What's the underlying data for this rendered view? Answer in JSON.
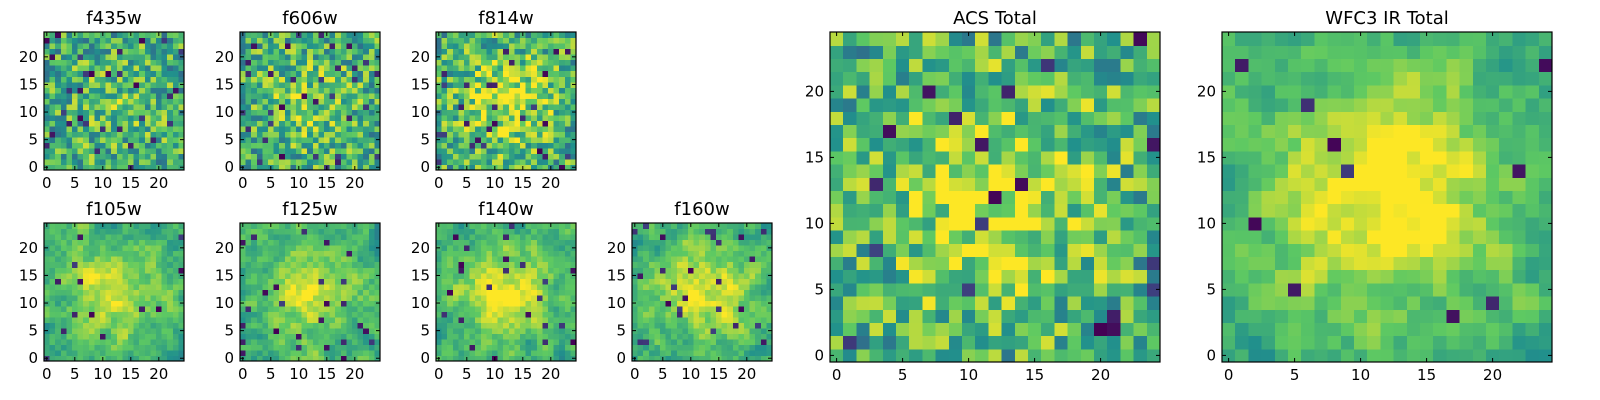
{
  "chart_data": {
    "type": "heatmap",
    "colormap": "viridis",
    "colors": {
      "viridis": [
        "#440154",
        "#3b528b",
        "#21918c",
        "#5ec962",
        "#fde725"
      ]
    },
    "panels": [
      {
        "title": "f435w",
        "grid_size": 25,
        "xticks": [
          0,
          5,
          10,
          15,
          20
        ],
        "yticks": [
          0,
          5,
          10,
          15,
          20
        ],
        "xlim": [
          0,
          24
        ],
        "ylim": [
          0,
          24
        ],
        "seed": 11,
        "blob_strength": 0.1,
        "smooth": 0,
        "dark_fraction": 0.05
      },
      {
        "title": "f606w",
        "grid_size": 25,
        "xticks": [
          0,
          5,
          10,
          15,
          20
        ],
        "yticks": [
          0,
          5,
          10,
          15,
          20
        ],
        "xlim": [
          0,
          24
        ],
        "ylim": [
          0,
          24
        ],
        "seed": 23,
        "blob_strength": 0.15,
        "smooth": 0,
        "dark_fraction": 0.05
      },
      {
        "title": "f814w",
        "grid_size": 25,
        "xticks": [
          0,
          5,
          10,
          15,
          20
        ],
        "yticks": [
          0,
          5,
          10,
          15,
          20
        ],
        "xlim": [
          0,
          24
        ],
        "ylim": [
          0,
          24
        ],
        "seed": 37,
        "blob_strength": 0.3,
        "smooth": 0,
        "dark_fraction": 0.04
      },
      {
        "title": "f105w",
        "grid_size": 25,
        "xticks": [
          0,
          5,
          10,
          15,
          20
        ],
        "yticks": [
          0,
          5,
          10,
          15,
          20
        ],
        "xlim": [
          0,
          24
        ],
        "ylim": [
          0,
          24
        ],
        "seed": 41,
        "blob_strength": 0.3,
        "smooth": 1,
        "dark_fraction": 0.03
      },
      {
        "title": "f125w",
        "grid_size": 25,
        "xticks": [
          0,
          5,
          10,
          15,
          20
        ],
        "yticks": [
          0,
          5,
          10,
          15,
          20
        ],
        "xlim": [
          0,
          24
        ],
        "ylim": [
          0,
          24
        ],
        "seed": 53,
        "blob_strength": 0.3,
        "smooth": 1,
        "dark_fraction": 0.03
      },
      {
        "title": "f140w",
        "grid_size": 25,
        "xticks": [
          0,
          5,
          10,
          15,
          20
        ],
        "yticks": [
          0,
          5,
          10,
          15,
          20
        ],
        "xlim": [
          0,
          24
        ],
        "ylim": [
          0,
          24
        ],
        "seed": 67,
        "blob_strength": 0.35,
        "smooth": 1,
        "dark_fraction": 0.03
      },
      {
        "title": "f160w",
        "grid_size": 25,
        "xticks": [
          0,
          5,
          10,
          15,
          20
        ],
        "yticks": [
          0,
          5,
          10,
          15,
          20
        ],
        "xlim": [
          0,
          24
        ],
        "ylim": [
          0,
          24
        ],
        "seed": 79,
        "blob_strength": 0.35,
        "smooth": 1,
        "dark_fraction": 0.04
      },
      {
        "title": "ACS Total",
        "grid_size": 25,
        "xticks": [
          0,
          5,
          10,
          15,
          20
        ],
        "yticks": [
          0,
          5,
          10,
          15,
          20
        ],
        "xlim": [
          0,
          24
        ],
        "ylim": [
          0,
          24
        ],
        "seed": 97,
        "blob_strength": 0.3,
        "smooth": 0,
        "dark_fraction": 0.03
      },
      {
        "title": "WFC3 IR Total",
        "grid_size": 25,
        "xticks": [
          0,
          5,
          10,
          15,
          20
        ],
        "yticks": [
          0,
          5,
          10,
          15,
          20
        ],
        "xlim": [
          0,
          24
        ],
        "ylim": [
          0,
          24
        ],
        "seed": 131,
        "blob_strength": 0.45,
        "smooth": 1,
        "dark_fraction": 0.02
      }
    ],
    "grid": false
  }
}
